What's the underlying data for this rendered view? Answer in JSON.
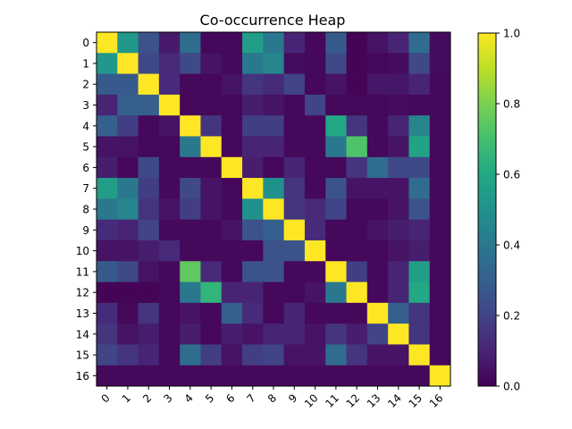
{
  "chart_data": {
    "type": "heatmap",
    "title": "Co-occurrence Heap",
    "xlabel": "",
    "ylabel": "",
    "x_tick_labels": [
      "0",
      "1",
      "2",
      "3",
      "4",
      "5",
      "6",
      "7",
      "8",
      "9",
      "10",
      "11",
      "12",
      "13",
      "14",
      "15",
      "16"
    ],
    "y_tick_labels": [
      "0",
      "1",
      "2",
      "3",
      "4",
      "5",
      "6",
      "7",
      "8",
      "9",
      "10",
      "11",
      "12",
      "13",
      "14",
      "15",
      "16"
    ],
    "colormap": "viridis",
    "vmin": 0.0,
    "vmax": 1.0,
    "colorbar_ticks": [
      "0.0",
      "0.2",
      "0.4",
      "0.6",
      "0.8",
      "1.0"
    ],
    "grid": false,
    "values": [
      [
        1.0,
        0.53,
        0.25,
        0.07,
        0.35,
        0.02,
        0.02,
        0.55,
        0.4,
        0.1,
        0.02,
        0.28,
        0.01,
        0.05,
        0.1,
        0.35,
        0.03
      ],
      [
        0.53,
        1.0,
        0.22,
        0.12,
        0.22,
        0.05,
        0.02,
        0.4,
        0.45,
        0.03,
        0.02,
        0.22,
        0.01,
        0.02,
        0.03,
        0.22,
        0.03
      ],
      [
        0.28,
        0.28,
        1.0,
        0.12,
        0.02,
        0.02,
        0.05,
        0.15,
        0.12,
        0.2,
        0.02,
        0.05,
        0.01,
        0.06,
        0.06,
        0.1,
        0.02
      ],
      [
        0.1,
        0.3,
        0.3,
        1.0,
        0.02,
        0.02,
        0.02,
        0.08,
        0.05,
        0.02,
        0.2,
        0.02,
        0.02,
        0.02,
        0.03,
        0.02,
        0.02
      ],
      [
        0.3,
        0.18,
        0.02,
        0.05,
        1.0,
        0.15,
        0.02,
        0.18,
        0.18,
        0.02,
        0.02,
        0.6,
        0.15,
        0.02,
        0.1,
        0.45,
        0.02
      ],
      [
        0.05,
        0.05,
        0.02,
        0.02,
        0.4,
        1.0,
        0.02,
        0.1,
        0.1,
        0.02,
        0.02,
        0.4,
        0.72,
        0.02,
        0.05,
        0.58,
        0.02
      ],
      [
        0.08,
        0.02,
        0.22,
        0.02,
        0.02,
        0.02,
        1.0,
        0.08,
        0.02,
        0.1,
        0.02,
        0.02,
        0.15,
        0.35,
        0.22,
        0.22,
        0.02
      ],
      [
        0.55,
        0.4,
        0.18,
        0.02,
        0.22,
        0.05,
        0.02,
        1.0,
        0.5,
        0.15,
        0.02,
        0.25,
        0.05,
        0.05,
        0.05,
        0.35,
        0.02
      ],
      [
        0.4,
        0.45,
        0.15,
        0.05,
        0.18,
        0.05,
        0.02,
        0.5,
        1.0,
        0.15,
        0.12,
        0.2,
        0.02,
        0.02,
        0.05,
        0.25,
        0.02
      ],
      [
        0.12,
        0.1,
        0.2,
        0.02,
        0.02,
        0.02,
        0.05,
        0.25,
        0.3,
        1.0,
        0.12,
        0.02,
        0.02,
        0.05,
        0.08,
        0.1,
        0.02
      ],
      [
        0.05,
        0.05,
        0.08,
        0.12,
        0.02,
        0.02,
        0.02,
        0.02,
        0.25,
        0.25,
        1.0,
        0.02,
        0.02,
        0.02,
        0.05,
        0.08,
        0.02
      ],
      [
        0.28,
        0.22,
        0.05,
        0.02,
        0.75,
        0.12,
        0.02,
        0.25,
        0.25,
        0.02,
        0.02,
        1.0,
        0.18,
        0.02,
        0.1,
        0.55,
        0.02
      ],
      [
        0.01,
        0.01,
        0.01,
        0.02,
        0.4,
        0.65,
        0.1,
        0.1,
        0.02,
        0.02,
        0.05,
        0.4,
        1.0,
        0.02,
        0.1,
        0.6,
        0.02
      ],
      [
        0.12,
        0.02,
        0.15,
        0.02,
        0.05,
        0.02,
        0.3,
        0.12,
        0.02,
        0.1,
        0.02,
        0.02,
        0.02,
        1.0,
        0.3,
        0.15,
        0.02
      ],
      [
        0.15,
        0.05,
        0.08,
        0.02,
        0.08,
        0.02,
        0.08,
        0.05,
        0.1,
        0.1,
        0.05,
        0.15,
        0.08,
        0.2,
        1.0,
        0.15,
        0.02
      ],
      [
        0.2,
        0.15,
        0.1,
        0.02,
        0.35,
        0.18,
        0.05,
        0.18,
        0.2,
        0.05,
        0.05,
        0.35,
        0.15,
        0.05,
        0.05,
        1.0,
        0.02
      ],
      [
        0.02,
        0.02,
        0.02,
        0.02,
        0.02,
        0.02,
        0.02,
        0.02,
        0.02,
        0.02,
        0.02,
        0.02,
        0.02,
        0.02,
        0.02,
        0.02,
        1.0
      ]
    ]
  }
}
